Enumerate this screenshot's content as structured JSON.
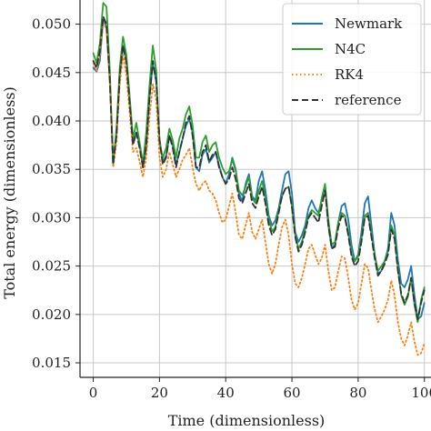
{
  "chart_data": {
    "type": "line",
    "title": "",
    "xlabel": "Time (dimensionless)",
    "ylabel": "Total energy (dimensionless)",
    "xlim": [
      -4,
      102
    ],
    "ylim": [
      0.0135,
      0.0525
    ],
    "xticks": [
      0,
      20,
      40,
      60,
      80,
      100
    ],
    "yticks": [
      0.015,
      0.02,
      0.025,
      0.03,
      0.035,
      0.04,
      0.045,
      0.05
    ],
    "xtick_labels": [
      "0",
      "20",
      "40",
      "60",
      "80",
      "100"
    ],
    "ytick_labels": [
      "0.015",
      "0.020",
      "0.025",
      "0.030",
      "0.035",
      "0.040",
      "0.045",
      "0.050"
    ],
    "grid": true,
    "legend_position": "top-right",
    "series": [
      {
        "name": "Newmark",
        "color": "#1f77b4",
        "style": "solid",
        "x": [
          0,
          1,
          2,
          3,
          4,
          5,
          6,
          7,
          8,
          9,
          10,
          12,
          13,
          14,
          15,
          16,
          17,
          18,
          19,
          20,
          21,
          22,
          23,
          24,
          25,
          26,
          27,
          28,
          29,
          30,
          31,
          32,
          33,
          34,
          35,
          36,
          37,
          38,
          39,
          40,
          41,
          42,
          43,
          44,
          45,
          46,
          47,
          48,
          49,
          50,
          51,
          52,
          53,
          54,
          55,
          56,
          57,
          58,
          59,
          60,
          61,
          62,
          63,
          64,
          65,
          66,
          67,
          68,
          69,
          70,
          71,
          72,
          73,
          74,
          75,
          76,
          77,
          78,
          79,
          80,
          81,
          82,
          83,
          84,
          85,
          86,
          87,
          88,
          89,
          90,
          91,
          92,
          93,
          94,
          95,
          96,
          97,
          98,
          99,
          100
        ],
        "values": [
          0.0455,
          0.0451,
          0.0462,
          0.0505,
          0.0497,
          0.044,
          0.0362,
          0.0385,
          0.0445,
          0.0478,
          0.0462,
          0.0378,
          0.0388,
          0.0376,
          0.0352,
          0.0372,
          0.0425,
          0.046,
          0.044,
          0.0382,
          0.0358,
          0.0364,
          0.0385,
          0.0375,
          0.0355,
          0.0367,
          0.0382,
          0.0395,
          0.0402,
          0.0388,
          0.0352,
          0.0348,
          0.0365,
          0.0371,
          0.0357,
          0.0362,
          0.0368,
          0.0354,
          0.0342,
          0.0335,
          0.0345,
          0.0362,
          0.035,
          0.0325,
          0.0317,
          0.0335,
          0.0345,
          0.0322,
          0.0318,
          0.0338,
          0.0348,
          0.0328,
          0.0302,
          0.0292,
          0.0297,
          0.031,
          0.0328,
          0.0345,
          0.0348,
          0.0325,
          0.0285,
          0.0275,
          0.0282,
          0.0292,
          0.031,
          0.0318,
          0.031,
          0.0305,
          0.0318,
          0.0332,
          0.0292,
          0.0269,
          0.0272,
          0.0295,
          0.0312,
          0.0315,
          0.0298,
          0.0272,
          0.0255,
          0.0262,
          0.0285,
          0.0315,
          0.0322,
          0.0292,
          0.0262,
          0.0242,
          0.0245,
          0.0255,
          0.0268,
          0.0305,
          0.0292,
          0.0256,
          0.0232,
          0.0228,
          0.0236,
          0.025,
          0.022,
          0.0195,
          0.0198,
          0.0212
        ]
      },
      {
        "name": "N4C",
        "color": "#2ca02c",
        "style": "solid",
        "x": [
          0,
          1,
          2,
          3,
          4,
          5,
          6,
          7,
          8,
          9,
          10,
          12,
          13,
          14,
          15,
          16,
          17,
          18,
          19,
          20,
          21,
          22,
          23,
          24,
          25,
          26,
          27,
          28,
          29,
          30,
          31,
          32,
          33,
          34,
          35,
          36,
          37,
          38,
          39,
          40,
          41,
          42,
          43,
          44,
          45,
          46,
          47,
          48,
          49,
          50,
          51,
          52,
          53,
          54,
          55,
          56,
          57,
          58,
          59,
          60,
          61,
          62,
          63,
          64,
          65,
          66,
          67,
          68,
          69,
          70,
          71,
          72,
          73,
          74,
          75,
          76,
          77,
          78,
          79,
          80,
          81,
          82,
          83,
          84,
          85,
          86,
          87,
          88,
          89,
          90,
          91,
          92,
          93,
          94,
          95,
          96,
          97,
          98,
          99,
          100
        ],
        "values": [
          0.047,
          0.046,
          0.048,
          0.0522,
          0.0518,
          0.0452,
          0.0355,
          0.0392,
          0.0455,
          0.0487,
          0.0468,
          0.0382,
          0.0398,
          0.0378,
          0.0356,
          0.0388,
          0.0438,
          0.0478,
          0.0452,
          0.0378,
          0.0362,
          0.0372,
          0.0392,
          0.038,
          0.0362,
          0.0382,
          0.0392,
          0.0407,
          0.0415,
          0.0395,
          0.0362,
          0.0362,
          0.0378,
          0.0385,
          0.0368,
          0.0375,
          0.0378,
          0.0362,
          0.0352,
          0.0345,
          0.0348,
          0.036,
          0.0348,
          0.0328,
          0.0323,
          0.0332,
          0.0342,
          0.032,
          0.0315,
          0.0328,
          0.0338,
          0.032,
          0.0298,
          0.0286,
          0.029,
          0.0308,
          0.0322,
          0.033,
          0.0332,
          0.0312,
          0.0282,
          0.0268,
          0.0275,
          0.0288,
          0.0302,
          0.0308,
          0.0305,
          0.0302,
          0.032,
          0.0335,
          0.0298,
          0.0272,
          0.0275,
          0.0295,
          0.0305,
          0.0302,
          0.0285,
          0.0262,
          0.0255,
          0.026,
          0.0278,
          0.0302,
          0.0305,
          0.0282,
          0.0262,
          0.0245,
          0.025,
          0.0255,
          0.0265,
          0.0292,
          0.0282,
          0.0248,
          0.022,
          0.021,
          0.0218,
          0.0238,
          0.021,
          0.0192,
          0.0215,
          0.0228
        ]
      },
      {
        "name": "RK4",
        "color": "#ff7f0e",
        "style": "dotted",
        "x": [
          0,
          1,
          2,
          3,
          4,
          5,
          6,
          7,
          8,
          9,
          10,
          12,
          13,
          14,
          15,
          16,
          17,
          18,
          19,
          20,
          21,
          22,
          23,
          24,
          25,
          26,
          27,
          28,
          29,
          30,
          31,
          32,
          33,
          34,
          35,
          36,
          37,
          38,
          39,
          40,
          41,
          42,
          43,
          44,
          45,
          46,
          47,
          48,
          49,
          50,
          51,
          52,
          53,
          54,
          55,
          56,
          57,
          58,
          59,
          60,
          61,
          62,
          63,
          64,
          65,
          66,
          67,
          68,
          69,
          70,
          71,
          72,
          73,
          74,
          75,
          76,
          77,
          78,
          79,
          80,
          81,
          82,
          83,
          84,
          85,
          86,
          87,
          88,
          89,
          90,
          91,
          92,
          93,
          94,
          95,
          96,
          97,
          98,
          99,
          100
        ],
        "values": [
          0.046,
          0.0452,
          0.0468,
          0.0502,
          0.0495,
          0.0438,
          0.0352,
          0.0378,
          0.0438,
          0.0468,
          0.0448,
          0.0368,
          0.0372,
          0.0358,
          0.0342,
          0.0362,
          0.0405,
          0.0438,
          0.0422,
          0.0362,
          0.0342,
          0.035,
          0.0368,
          0.0355,
          0.0342,
          0.035,
          0.036,
          0.0365,
          0.0372,
          0.0352,
          0.0335,
          0.0328,
          0.0335,
          0.0338,
          0.0328,
          0.0325,
          0.0318,
          0.0305,
          0.0295,
          0.0298,
          0.0312,
          0.0325,
          0.0305,
          0.0282,
          0.0278,
          0.0292,
          0.0305,
          0.0285,
          0.0278,
          0.0288,
          0.0298,
          0.0275,
          0.0252,
          0.0242,
          0.0252,
          0.0272,
          0.029,
          0.0298,
          0.0282,
          0.0252,
          0.0232,
          0.0228,
          0.0238,
          0.0252,
          0.0268,
          0.0272,
          0.0262,
          0.0252,
          0.0258,
          0.0272,
          0.0245,
          0.0225,
          0.0228,
          0.0245,
          0.026,
          0.0258,
          0.0238,
          0.0215,
          0.0205,
          0.0212,
          0.0232,
          0.0252,
          0.0248,
          0.0225,
          0.0205,
          0.0192,
          0.0198,
          0.0205,
          0.0215,
          0.0235,
          0.022,
          0.0192,
          0.0175,
          0.0168,
          0.0178,
          0.0192,
          0.0172,
          0.0158,
          0.016,
          0.017
        ]
      },
      {
        "name": "reference",
        "color": "#333333",
        "style": "dashed",
        "x": [
          0,
          1,
          2,
          3,
          4,
          5,
          6,
          7,
          8,
          9,
          10,
          12,
          13,
          14,
          15,
          16,
          17,
          18,
          19,
          20,
          21,
          22,
          23,
          24,
          25,
          26,
          27,
          28,
          29,
          30,
          31,
          32,
          33,
          34,
          35,
          36,
          37,
          38,
          39,
          40,
          41,
          42,
          43,
          44,
          45,
          46,
          47,
          48,
          49,
          50,
          51,
          52,
          53,
          54,
          55,
          56,
          57,
          58,
          59,
          60,
          61,
          62,
          63,
          64,
          65,
          66,
          67,
          68,
          69,
          70,
          71,
          72,
          73,
          74,
          75,
          76,
          77,
          78,
          79,
          80,
          81,
          82,
          83,
          84,
          85,
          86,
          87,
          88,
          89,
          90,
          91,
          92,
          93,
          94,
          95,
          96,
          97,
          98,
          99,
          100
        ],
        "values": [
          0.0462,
          0.0455,
          0.0472,
          0.0508,
          0.05,
          0.0442,
          0.0355,
          0.0385,
          0.0448,
          0.0478,
          0.046,
          0.0375,
          0.0388,
          0.0372,
          0.0352,
          0.0375,
          0.0425,
          0.0462,
          0.0442,
          0.038,
          0.0355,
          0.0362,
          0.0385,
          0.0372,
          0.0352,
          0.0368,
          0.0382,
          0.0398,
          0.0405,
          0.0385,
          0.0352,
          0.0352,
          0.0368,
          0.0375,
          0.0358,
          0.0365,
          0.0368,
          0.0352,
          0.0342,
          0.0335,
          0.034,
          0.0352,
          0.034,
          0.032,
          0.0315,
          0.0325,
          0.0335,
          0.0315,
          0.031,
          0.0322,
          0.0332,
          0.0315,
          0.0292,
          0.0282,
          0.0288,
          0.0305,
          0.0322,
          0.033,
          0.0332,
          0.031,
          0.028,
          0.0265,
          0.0272,
          0.0285,
          0.03,
          0.0305,
          0.03,
          0.0295,
          0.0312,
          0.0328,
          0.0292,
          0.0268,
          0.027,
          0.029,
          0.0302,
          0.03,
          0.0282,
          0.026,
          0.025,
          0.0255,
          0.0275,
          0.03,
          0.0302,
          0.028,
          0.0258,
          0.024,
          0.0245,
          0.0252,
          0.0262,
          0.0288,
          0.0278,
          0.0245,
          0.0222,
          0.0212,
          0.022,
          0.0238,
          0.0212,
          0.0195,
          0.0212,
          0.0225
        ]
      }
    ]
  }
}
